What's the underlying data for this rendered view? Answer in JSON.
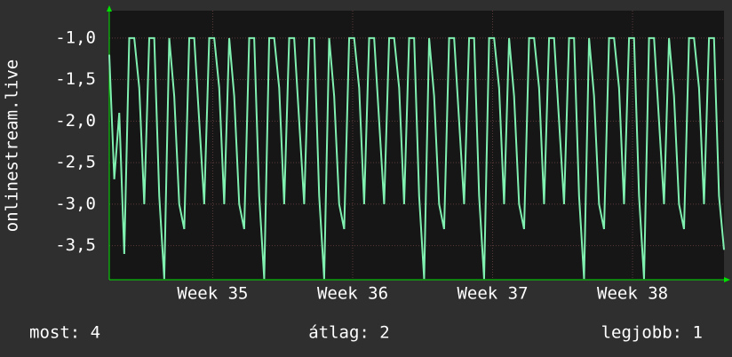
{
  "chart_data": {
    "type": "line",
    "y_label": "onlinestream.live",
    "values": [
      -1.2,
      -2.7,
      -1.9,
      -3.6,
      -1.0,
      -1.0,
      -1.6,
      -3.0,
      -1.0,
      -1.0,
      -2.9,
      -3.9,
      -1.0,
      -1.7,
      -3.0,
      -3.3,
      -1.0,
      -1.0,
      -2.0,
      -3.0,
      -1.0,
      -1.0,
      -1.6,
      -3.0,
      -1.0,
      -1.7,
      -3.0,
      -3.3,
      -1.0,
      -1.0,
      -2.9,
      -3.9,
      -1.0,
      -1.0,
      -1.6,
      -3.0,
      -1.0,
      -1.0,
      -2.0,
      -3.0,
      -1.0,
      -1.0,
      -2.9,
      -3.9,
      -1.0,
      -1.7,
      -3.0,
      -3.3,
      -1.0,
      -1.0,
      -1.6,
      -3.0,
      -1.0,
      -1.0,
      -2.0,
      -3.0,
      -1.0,
      -1.0,
      -1.6,
      -3.0,
      -1.0,
      -1.0,
      -2.9,
      -3.9,
      -1.0,
      -1.7,
      -3.0,
      -3.3,
      -1.0,
      -1.0,
      -2.0,
      -3.0,
      -1.0,
      -1.0,
      -2.9,
      -3.9,
      -1.0,
      -1.0,
      -1.6,
      -3.0,
      -1.0,
      -1.7,
      -3.0,
      -3.3,
      -1.0,
      -1.0,
      -1.6,
      -3.0,
      -1.0,
      -1.0,
      -2.0,
      -3.0,
      -1.0,
      -1.0,
      -2.9,
      -3.9,
      -1.0,
      -1.7,
      -3.0,
      -3.3,
      -1.0,
      -1.0,
      -1.6,
      -3.0,
      -1.0,
      -1.0,
      -2.9,
      -3.9,
      -1.0,
      -1.0,
      -2.0,
      -3.0,
      -1.0,
      -1.7,
      -3.0,
      -3.3,
      -1.0,
      -1.0,
      -1.6,
      -3.0,
      -1.0,
      -1.0,
      -2.9,
      -3.55
    ],
    "color": "#80f0b0",
    "xlim": [
      0,
      123
    ],
    "xticks": [
      {
        "value": 20.7,
        "label": "Week 35"
      },
      {
        "value": 48.7,
        "label": "Week 36"
      },
      {
        "value": 76.7,
        "label": "Week 37"
      },
      {
        "value": 104.7,
        "label": "Week 38"
      }
    ],
    "ylim": [
      -3.91,
      -0.67
    ],
    "yticks": [
      {
        "value": -1.0,
        "label": "-1,0"
      },
      {
        "value": -1.5,
        "label": "-1,5"
      },
      {
        "value": -2.0,
        "label": "-2,0"
      },
      {
        "value": -2.5,
        "label": "-2,5"
      },
      {
        "value": -3.0,
        "label": "-3,0"
      },
      {
        "value": -3.5,
        "label": "-3,5"
      }
    ],
    "grid": true,
    "footer": {
      "current": "most: 4",
      "average": "átlag: 2",
      "best": "legjobb: 1"
    }
  }
}
